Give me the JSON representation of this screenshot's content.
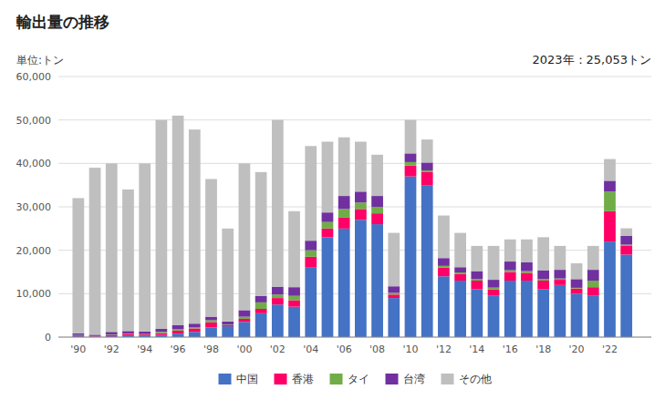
{
  "chart_data": {
    "type": "bar",
    "stacked": true,
    "title": "輸出量の推移",
    "y_label": "単位:トン",
    "annotation": "2023年：25,053トン",
    "x": [
      1990,
      1991,
      1992,
      1993,
      1994,
      1995,
      1996,
      1997,
      1998,
      1999,
      2000,
      2001,
      2002,
      2003,
      2004,
      2005,
      2006,
      2007,
      2008,
      2009,
      2010,
      2011,
      2012,
      2013,
      2014,
      2015,
      2016,
      2017,
      2018,
      2019,
      2020,
      2021,
      2022,
      2023
    ],
    "series": [
      {
        "name": "中国",
        "color": "#4472C4",
        "values": [
          200,
          100,
          200,
          400,
          400,
          500,
          800,
          1200,
          2200,
          2500,
          3500,
          5500,
          7500,
          7000,
          16000,
          23000,
          25000,
          27000,
          26000,
          9000,
          37000,
          35000,
          14000,
          13000,
          11000,
          9500,
          13000,
          13000,
          11000,
          12000,
          10000,
          9500,
          22000,
          19000
        ]
      },
      {
        "name": "香港",
        "color": "#FF0066",
        "values": [
          200,
          100,
          300,
          300,
          200,
          400,
          700,
          800,
          1200,
          300,
          700,
          1000,
          1500,
          1500,
          2500,
          2000,
          2500,
          2500,
          2500,
          800,
          2500,
          3000,
          2000,
          1500,
          2000,
          1500,
          2000,
          1800,
          2000,
          1200,
          1200,
          2000,
          7000,
          2000
        ]
      },
      {
        "name": "タイ",
        "color": "#70AD47",
        "values": [
          100,
          50,
          100,
          100,
          100,
          300,
          300,
          300,
          500,
          100,
          500,
          1500,
          800,
          1000,
          1500,
          1500,
          2000,
          1500,
          1500,
          400,
          800,
          400,
          400,
          400,
          400,
          400,
          400,
          400,
          400,
          300,
          150,
          1500,
          4500,
          300
        ]
      },
      {
        "name": "台湾",
        "color": "#7030A0",
        "values": [
          400,
          300,
          600,
          600,
          600,
          700,
          1000,
          800,
          800,
          700,
          1500,
          1500,
          1800,
          2000,
          2200,
          2200,
          3000,
          2500,
          2500,
          1500,
          2000,
          1800,
          1800,
          1200,
          1800,
          1800,
          2000,
          2000,
          2000,
          2000,
          2000,
          2500,
          2500,
          2000
        ]
      },
      {
        "name": "その他",
        "color": "#BFBFBF",
        "values": [
          31100,
          38450,
          38800,
          32600,
          38700,
          48100,
          48200,
          44700,
          31700,
          21400,
          33800,
          28500,
          38400,
          17500,
          21800,
          16300,
          13500,
          11500,
          9500,
          12300,
          7700,
          5300,
          9800,
          7900,
          5800,
          7800,
          5100,
          5300,
          7600,
          5500,
          3650,
          5500,
          5000,
          1753
        ]
      }
    ],
    "xlim": [
      1988.8,
      2024.5
    ],
    "xticks": [
      {
        "value": 1990,
        "label": "'90"
      },
      {
        "value": 1992,
        "label": "'92"
      },
      {
        "value": 1994,
        "label": "'94"
      },
      {
        "value": 1996,
        "label": "'96"
      },
      {
        "value": 1998,
        "label": "'98"
      },
      {
        "value": 2000,
        "label": "'00"
      },
      {
        "value": 2002,
        "label": "'02"
      },
      {
        "value": 2004,
        "label": "'04"
      },
      {
        "value": 2006,
        "label": "'06"
      },
      {
        "value": 2008,
        "label": "'08"
      },
      {
        "value": 2010,
        "label": "'10"
      },
      {
        "value": 2012,
        "label": "'12"
      },
      {
        "value": 2014,
        "label": "'14"
      },
      {
        "value": 2016,
        "label": "'16"
      },
      {
        "value": 2018,
        "label": "'18"
      },
      {
        "value": 2020,
        "label": "'20"
      },
      {
        "value": 2022,
        "label": "'22"
      }
    ],
    "ylim": [
      0,
      60000
    ],
    "yticks": [
      0,
      {
        "value": 10000,
        "label": "10,000"
      },
      {
        "value": 20000,
        "label": "20,000"
      },
      {
        "value": 30000,
        "label": "30,000"
      },
      {
        "value": 40000,
        "label": "40,000"
      },
      {
        "value": 50000,
        "label": "50,000"
      },
      {
        "value": 60000,
        "label": "60,000"
      }
    ],
    "grid": true,
    "legend": "bottom"
  }
}
